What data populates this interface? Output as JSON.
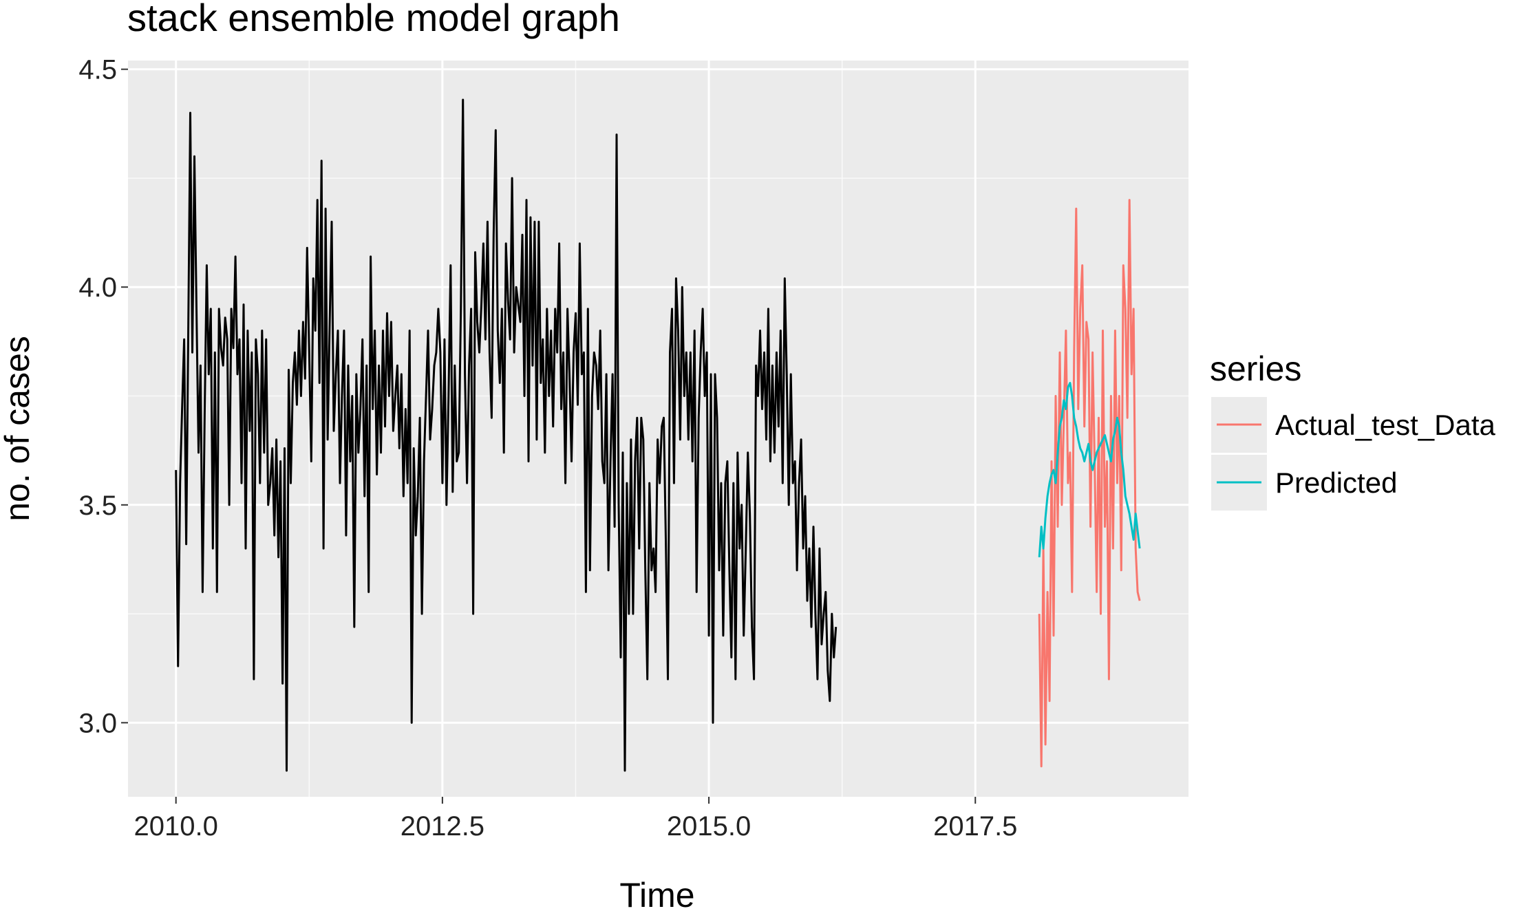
{
  "chart_data": {
    "type": "line",
    "title": "stack ensemble model graph",
    "xlabel": "Time",
    "ylabel": "no. of cases",
    "xlim": [
      2009.55,
      2019.5
    ],
    "ylim": [
      2.83,
      4.52
    ],
    "x_ticks": [
      2010.0,
      2012.5,
      2015.0,
      2017.5
    ],
    "x_tick_labels": [
      "2010.0",
      "2012.5",
      "2015.0",
      "2017.5"
    ],
    "y_ticks": [
      3.0,
      3.5,
      4.0,
      4.5
    ],
    "y_tick_labels": [
      "3.0",
      "3.5",
      "4.0",
      "4.5"
    ],
    "grid": true,
    "legend": {
      "title": "series",
      "position": "right"
    },
    "series": [
      {
        "name": "",
        "color": "#000000",
        "start": 2010.0,
        "step": 0.0192308,
        "values": [
          3.58,
          3.13,
          3.55,
          3.72,
          3.88,
          3.41,
          3.9,
          4.4,
          3.85,
          4.3,
          3.95,
          3.62,
          3.82,
          3.3,
          3.71,
          4.05,
          3.8,
          3.95,
          3.4,
          3.85,
          3.3,
          3.95,
          3.86,
          3.82,
          3.93,
          3.88,
          3.5,
          3.95,
          3.86,
          4.07,
          3.8,
          3.88,
          3.55,
          3.96,
          3.4,
          3.9,
          3.67,
          3.85,
          3.1,
          3.88,
          3.8,
          3.55,
          3.9,
          3.62,
          3.88,
          3.5,
          3.55,
          3.63,
          3.43,
          3.65,
          3.38,
          3.6,
          3.09,
          3.63,
          2.89,
          3.81,
          3.55,
          3.78,
          3.85,
          3.73,
          3.9,
          3.75,
          3.92,
          3.79,
          4.09,
          3.85,
          3.6,
          4.02,
          3.9,
          4.2,
          3.78,
          4.29,
          3.4,
          4.18,
          3.65,
          3.92,
          4.15,
          3.67,
          3.8,
          3.9,
          3.55,
          3.75,
          3.9,
          3.43,
          3.82,
          3.6,
          3.75,
          3.22,
          3.8,
          3.62,
          3.72,
          3.88,
          3.52,
          3.82,
          3.3,
          4.07,
          3.72,
          3.9,
          3.57,
          3.82,
          3.62,
          3.9,
          3.68,
          3.94,
          3.75,
          3.92,
          3.67,
          3.75,
          3.82,
          3.63,
          3.8,
          3.52,
          3.72,
          3.55,
          3.9,
          3.0,
          3.63,
          3.43,
          3.52,
          3.7,
          3.25,
          3.6,
          3.75,
          3.9,
          3.65,
          3.72,
          3.82,
          3.85,
          3.95,
          3.85,
          3.55,
          3.88,
          3.5,
          3.75,
          4.05,
          3.53,
          3.82,
          3.6,
          3.62,
          3.95,
          4.43,
          3.8,
          3.55,
          3.82,
          3.95,
          3.25,
          4.08,
          3.92,
          3.85,
          3.96,
          4.1,
          3.88,
          4.15,
          3.85,
          3.7,
          4.12,
          4.36,
          3.9,
          3.78,
          3.95,
          3.62,
          4.1,
          3.97,
          3.88,
          4.25,
          3.85,
          4.0,
          3.96,
          3.92,
          4.12,
          3.75,
          4.2,
          3.6,
          4.16,
          3.82,
          4.15,
          3.65,
          4.15,
          3.78,
          3.88,
          3.62,
          3.95,
          3.75,
          3.9,
          3.68,
          3.95,
          3.85,
          4.1,
          3.72,
          3.85,
          3.55,
          3.95,
          3.8,
          3.6,
          3.85,
          3.94,
          3.73,
          4.1,
          3.8,
          3.85,
          3.3,
          3.95,
          3.35,
          3.75,
          3.85,
          3.82,
          3.72,
          3.9,
          3.6,
          3.55,
          3.8,
          3.35,
          3.6,
          3.8,
          3.45,
          4.35,
          3.5,
          3.15,
          3.62,
          2.89,
          3.55,
          3.25,
          3.65,
          3.25,
          3.6,
          3.7,
          3.4,
          3.7,
          3.65,
          3.35,
          3.1,
          3.55,
          3.35,
          3.4,
          3.3,
          3.65,
          3.55,
          3.68,
          3.7,
          3.42,
          3.1,
          3.85,
          3.95,
          3.55,
          4.02,
          3.9,
          3.65,
          4.0,
          3.75,
          3.85,
          3.65,
          3.85,
          3.6,
          3.9,
          3.3,
          3.7,
          3.85,
          3.95,
          3.75,
          3.85,
          3.2,
          3.8,
          3.0,
          3.8,
          3.7,
          3.35,
          3.55,
          3.2,
          3.55,
          3.6,
          3.35,
          3.15,
          3.55,
          3.1,
          3.62,
          3.4,
          3.5,
          3.2,
          3.4,
          3.62,
          3.48,
          3.22,
          3.1,
          3.82,
          3.75,
          3.9,
          3.72,
          3.85,
          3.65,
          3.95,
          3.6,
          3.82,
          3.62,
          3.85,
          3.68,
          3.9,
          3.55,
          4.02,
          3.8,
          3.5,
          3.8,
          3.55,
          3.6,
          3.35,
          3.55,
          3.65,
          3.4,
          3.52,
          3.28,
          3.4,
          3.22,
          3.45,
          3.25,
          3.1,
          3.4,
          3.18,
          3.25,
          3.3,
          3.12,
          3.05,
          3.25,
          3.15,
          3.22
        ]
      },
      {
        "name": "Actual_test_Data",
        "color": "#F8766D",
        "start": 2018.1,
        "step": 0.0192308,
        "values": [
          3.25,
          2.9,
          3.4,
          2.95,
          3.3,
          3.05,
          3.6,
          3.2,
          3.75,
          3.45,
          3.85,
          3.5,
          3.7,
          3.9,
          3.55,
          3.62,
          3.3,
          3.85,
          4.18,
          3.72,
          3.95,
          4.05,
          3.68,
          3.92,
          3.88,
          3.45,
          3.85,
          3.6,
          3.3,
          3.7,
          3.25,
          3.9,
          3.45,
          3.6,
          3.1,
          3.75,
          3.4,
          3.9,
          3.55,
          3.75,
          3.35,
          4.05,
          3.95,
          3.7,
          4.2,
          3.8,
          3.95,
          3.4,
          3.3,
          3.28
        ]
      },
      {
        "name": "Predicted",
        "color": "#00BFC4",
        "start": 2018.1,
        "step": 0.0192308,
        "values": [
          3.38,
          3.45,
          3.4,
          3.47,
          3.52,
          3.55,
          3.57,
          3.58,
          3.55,
          3.62,
          3.68,
          3.7,
          3.74,
          3.72,
          3.77,
          3.78,
          3.75,
          3.7,
          3.68,
          3.65,
          3.63,
          3.62,
          3.6,
          3.62,
          3.64,
          3.6,
          3.58,
          3.6,
          3.62,
          3.63,
          3.64,
          3.65,
          3.66,
          3.64,
          3.62,
          3.6,
          3.65,
          3.67,
          3.7,
          3.68,
          3.62,
          3.58,
          3.52,
          3.5,
          3.48,
          3.45,
          3.42,
          3.48,
          3.44,
          3.4
        ]
      }
    ]
  }
}
